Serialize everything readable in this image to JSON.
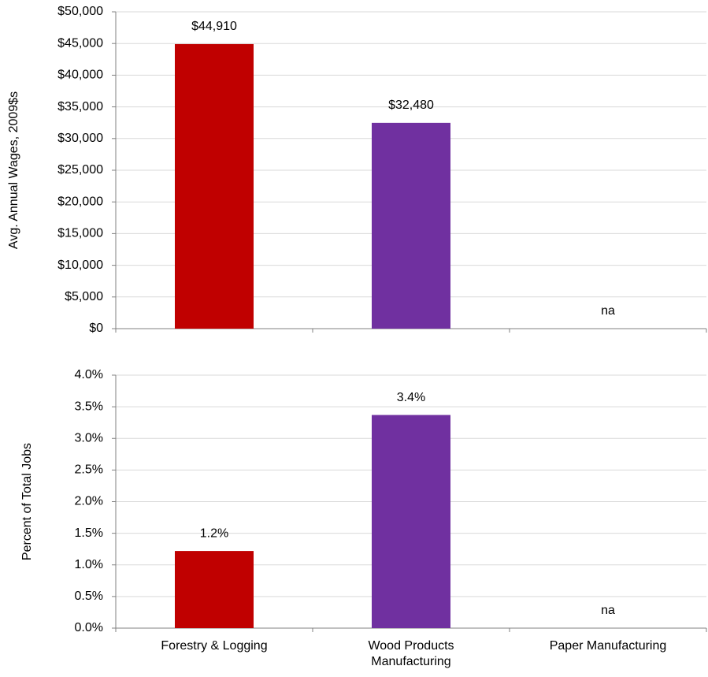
{
  "chart_data": [
    {
      "type": "bar",
      "ylabel": "Avg. Annual Wages, 2009$s",
      "values": [
        44910,
        32480,
        null
      ],
      "value_labels": [
        "$44,910",
        "$32,480",
        "na"
      ],
      "colors": [
        "#c00000",
        "#7030a0"
      ],
      "ylim": [
        0,
        50000
      ],
      "yticks": [
        {
          "value": 0,
          "label": "$0"
        },
        {
          "value": 5000,
          "label": "$5,000"
        },
        {
          "value": 10000,
          "label": "$10,000"
        },
        {
          "value": 15000,
          "label": "$15,000"
        },
        {
          "value": 20000,
          "label": "$20,000"
        },
        {
          "value": 25000,
          "label": "$25,000"
        },
        {
          "value": 30000,
          "label": "$30,000"
        },
        {
          "value": 35000,
          "label": "$35,000"
        },
        {
          "value": 40000,
          "label": "$40,000"
        },
        {
          "value": 45000,
          "label": "$45,000"
        },
        {
          "value": 50000,
          "label": "$50,000"
        }
      ],
      "grid": true
    },
    {
      "type": "bar",
      "ylabel": "Percent of Total Jobs",
      "categories": [
        "Forestry & Logging",
        "Wood Products Manufacturing",
        "Paper Manufacturing"
      ],
      "values": [
        1.22,
        3.37,
        null
      ],
      "value_labels": [
        "1.2%",
        "3.4%",
        "na"
      ],
      "colors": [
        "#c00000",
        "#7030a0"
      ],
      "ylim": [
        0,
        4
      ],
      "yticks": [
        {
          "value": 0,
          "label": "0.0%"
        },
        {
          "value": 0.5,
          "label": "0.5%"
        },
        {
          "value": 1,
          "label": "1.0%"
        },
        {
          "value": 1.5,
          "label": "1.5%"
        },
        {
          "value": 2,
          "label": "2.0%"
        },
        {
          "value": 2.5,
          "label": "2.5%"
        },
        {
          "value": 3,
          "label": "3.0%"
        },
        {
          "value": 3.5,
          "label": "3.5%"
        },
        {
          "value": 4,
          "label": "4.0%"
        }
      ],
      "grid": true
    }
  ]
}
